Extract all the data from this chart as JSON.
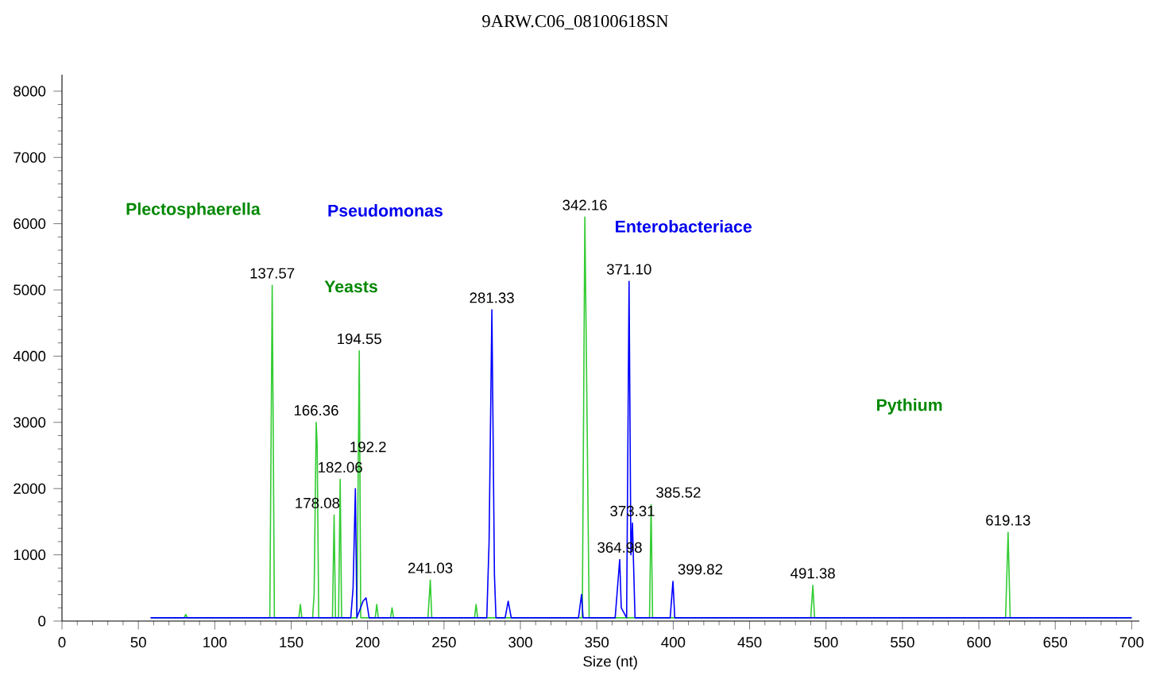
{
  "chart_data": {
    "type": "line",
    "title": "9ARW.C06_08100618SN",
    "xlabel": "Size (nt)",
    "xlim": [
      0,
      705
    ],
    "ylim": [
      0,
      8250
    ],
    "xticks": [
      0,
      50,
      100,
      150,
      200,
      250,
      300,
      350,
      400,
      450,
      500,
      550,
      600,
      650,
      700
    ],
    "yticks": [
      0,
      1000,
      2000,
      3000,
      4000,
      5000,
      6000,
      7000,
      8000
    ],
    "grid": false,
    "marker": "none",
    "line_style": "solid",
    "series": [
      {
        "color": "#33cc33",
        "x": [
          58,
          80,
          81,
          82,
          130,
          136,
          137.57,
          138.3,
          139,
          155,
          156,
          157,
          164,
          165,
          166.36,
          167,
          168,
          177,
          178.08,
          179,
          181,
          182.06,
          183,
          193,
          194.55,
          195.5,
          205,
          206,
          207,
          215,
          216,
          217,
          239.5,
          241.03,
          242,
          270,
          271,
          272,
          330,
          340.5,
          342.16,
          343,
          345,
          384.5,
          385.52,
          386.5,
          490,
          491.38,
          492.5,
          617.5,
          619.13,
          620.5,
          700
        ],
        "values": [
          50,
          50,
          100,
          50,
          50,
          50,
          5070,
          2700,
          50,
          50,
          250,
          50,
          50,
          400,
          3000,
          2650,
          50,
          50,
          1600,
          50,
          50,
          2140,
          50,
          50,
          4080,
          50,
          50,
          250,
          50,
          50,
          200,
          50,
          50,
          620,
          50,
          50,
          250,
          50,
          50,
          50,
          6100,
          4400,
          50,
          50,
          1760,
          50,
          50,
          540,
          50,
          50,
          1340,
          50,
          50
        ]
      },
      {
        "color": "#0000ff",
        "x": [
          58,
          189,
          190.5,
          192,
          193,
          197,
          199,
          201,
          278,
          279.5,
          281.33,
          283,
          284,
          290,
          292,
          294,
          338,
          340,
          341,
          362,
          364.98,
          366,
          369.5,
          371.1,
          372.3,
          373.31,
          375,
          398,
          399.82,
          401,
          700
        ],
        "values": [
          50,
          50,
          500,
          2000,
          50,
          300,
          350,
          50,
          50,
          1200,
          4700,
          700,
          50,
          50,
          300,
          50,
          50,
          400,
          50,
          50,
          930,
          200,
          50,
          5130,
          1000,
          1480,
          50,
          50,
          600,
          50,
          50
        ]
      }
    ],
    "annotations": [
      {
        "text": "137.57",
        "x": 137.57,
        "y": 5070
      },
      {
        "text": "166.36",
        "x": 166.36,
        "y": 3000
      },
      {
        "text": "178.08",
        "x": 178.08,
        "y": 1600
      },
      {
        "text": "182.06",
        "x": 182.06,
        "y": 2140
      },
      {
        "text": "192.2",
        "x": 192,
        "y": 2000
      },
      {
        "text": "194.55",
        "x": 194.55,
        "y": 4080
      },
      {
        "text": "241.03",
        "x": 241.03,
        "y": 620
      },
      {
        "text": "281.33",
        "x": 281.33,
        "y": 4700
      },
      {
        "text": "342.16",
        "x": 342.16,
        "y": 6100
      },
      {
        "text": "364.98",
        "x": 364.98,
        "y": 930
      },
      {
        "text": "371.10",
        "x": 371.1,
        "y": 5130
      },
      {
        "text": "373.31",
        "x": 373.31,
        "y": 1480
      },
      {
        "text": "385.52",
        "x": 385.52,
        "y": 1760
      },
      {
        "text": "399.82",
        "x": 399.82,
        "y": 600
      },
      {
        "text": "491.38",
        "x": 491.38,
        "y": 540
      },
      {
        "text": "619.13",
        "x": 619.13,
        "y": 1340
      },
      "Plectosphaerella",
      "Pseudomonas",
      "Yeasts",
      "Enterobacteriace",
      "Pythium"
    ]
  }
}
